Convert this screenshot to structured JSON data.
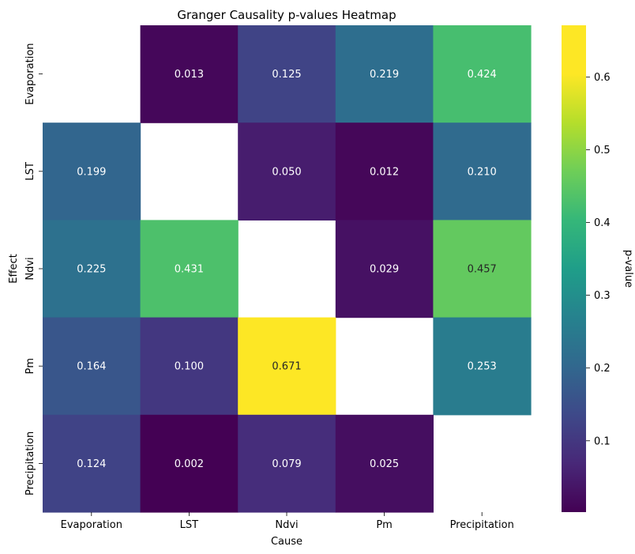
{
  "chart_data": {
    "type": "heatmap",
    "title": "Granger Causality p-values Heatmap",
    "xlabel": "Cause",
    "ylabel": "Effect",
    "x_categories": [
      "Evaporation",
      "LST",
      "Ndvi",
      "Pm",
      "Precipitation"
    ],
    "y_categories": [
      "Evaporation",
      "LST",
      "Ndvi",
      "Pm",
      "Precipitation"
    ],
    "values": [
      [
        null,
        0.013,
        0.125,
        0.219,
        0.424
      ],
      [
        0.199,
        null,
        0.05,
        0.012,
        0.21
      ],
      [
        0.225,
        0.431,
        null,
        0.029,
        0.457
      ],
      [
        0.164,
        0.1,
        0.671,
        null,
        0.253
      ],
      [
        0.124,
        0.002,
        0.079,
        0.025,
        null
      ]
    ],
    "colormap": "viridis",
    "colorbar": {
      "label": "p-value",
      "min": 0.002,
      "max": 0.671,
      "ticks": [
        0.1,
        0.2,
        0.3,
        0.4,
        0.5,
        0.6
      ]
    },
    "annot": true,
    "annot_format": "3 decimals"
  }
}
